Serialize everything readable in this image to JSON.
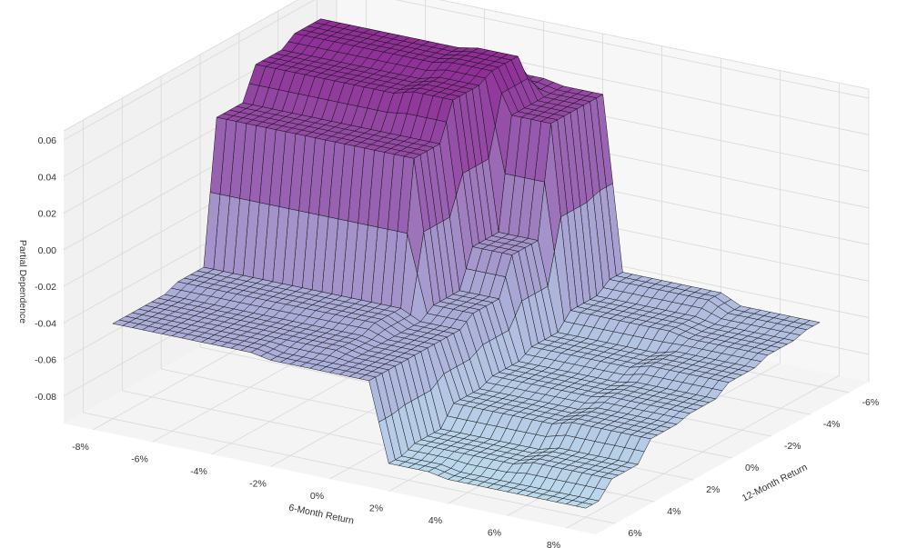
{
  "chart_data": {
    "type": "surface3d",
    "title": "",
    "xlabel": "6-Month Return",
    "ylabel": "12-Month Return",
    "zlabel": "Partial Dependence",
    "xlim": [
      -0.09,
      0.09
    ],
    "ylim": [
      -0.07,
      0.07
    ],
    "zlim": [
      -0.095,
      0.065
    ],
    "x_ticks": [
      -0.08,
      -0.06,
      -0.04,
      -0.02,
      0.0,
      0.02,
      0.04,
      0.06,
      0.08
    ],
    "x_tick_labels": [
      "-8%",
      "-6%",
      "-4%",
      "-2%",
      "0%",
      "2%",
      "4%",
      "6%",
      "8%"
    ],
    "y_ticks": [
      -0.06,
      -0.04,
      -0.02,
      0.0,
      0.02,
      0.04,
      0.06
    ],
    "y_tick_labels": [
      "-6%",
      "-4%",
      "-2%",
      "0%",
      "2%",
      "4%",
      "6%"
    ],
    "z_ticks": [
      -0.08,
      -0.06,
      -0.04,
      -0.02,
      0.0,
      0.02,
      0.04,
      0.06
    ],
    "z_tick_labels": [
      "-0.08",
      "-0.06",
      "-0.04",
      "-0.02",
      "0.00",
      "0.02",
      "0.04",
      "0.06"
    ],
    "grid": true,
    "colormap": [
      "#bcd9ec",
      "#a9a9d6",
      "#9a67b4",
      "#8e2a94"
    ],
    "surface_x": [
      -0.08,
      -0.06,
      -0.04,
      -0.02,
      0.0,
      0.02,
      0.04,
      0.06,
      0.08
    ],
    "surface_y": [
      0.06,
      0.04,
      0.02,
      0.0,
      -0.02,
      -0.04,
      -0.06
    ],
    "surface_z": [
      [
        -0.043,
        -0.043,
        -0.043,
        -0.045,
        -0.045,
        -0.088,
        -0.09,
        -0.09,
        -0.09
      ],
      [
        -0.043,
        -0.043,
        -0.043,
        -0.043,
        -0.045,
        -0.085,
        -0.085,
        -0.082,
        -0.082
      ],
      [
        -0.04,
        -0.04,
        -0.04,
        -0.04,
        -0.045,
        -0.075,
        -0.075,
        -0.072,
        -0.072
      ],
      [
        0.038,
        0.038,
        0.038,
        0.038,
        -0.04,
        -0.072,
        -0.072,
        -0.07,
        -0.07
      ],
      [
        0.055,
        0.055,
        0.055,
        0.058,
        -0.02,
        -0.068,
        -0.068,
        -0.065,
        -0.065
      ],
      [
        0.06,
        0.06,
        0.06,
        0.062,
        0.04,
        -0.06,
        -0.06,
        -0.062,
        -0.062
      ],
      [
        0.04,
        0.04,
        0.04,
        0.042,
        0.04,
        -0.055,
        -0.055,
        -0.06,
        -0.06
      ]
    ]
  }
}
